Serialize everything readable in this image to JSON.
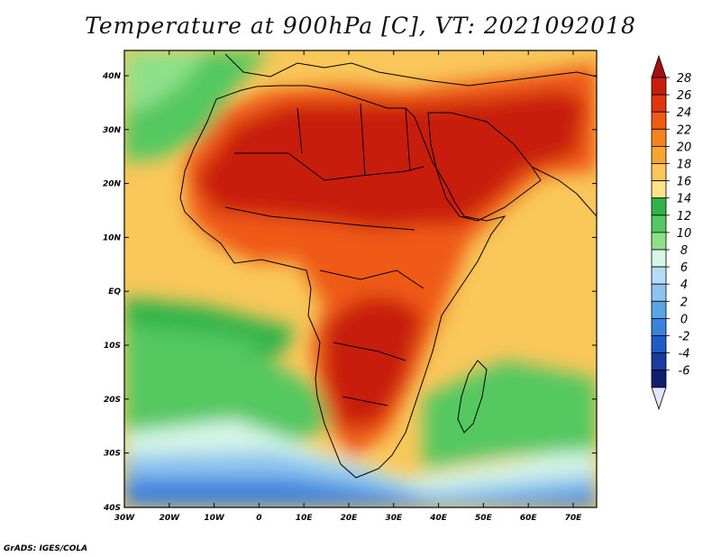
{
  "title": "Temperature at 900hPa [C], VT: 2021092018",
  "credit": "GrADS: IGES/COLA",
  "axes": {
    "lon_labels": [
      "30W",
      "20W",
      "10W",
      "0",
      "10E",
      "20E",
      "30E",
      "40E",
      "50E",
      "60E",
      "70E"
    ],
    "lat_labels": [
      "40N",
      "30N",
      "20N",
      "10N",
      "EQ",
      "10S",
      "20S",
      "30S",
      "40S"
    ]
  },
  "colorbar": {
    "labels": [
      "28",
      "26",
      "24",
      "22",
      "20",
      "18",
      "16",
      "14",
      "12",
      "10",
      "8",
      "6",
      "4",
      "2",
      "0",
      "-2",
      "-4",
      "-6"
    ],
    "colors": [
      "#a50f0f",
      "#c81e0f",
      "#e0360f",
      "#ef5a14",
      "#f5821e",
      "#f7a531",
      "#f9c75a",
      "#fbe389",
      "#2fb44a",
      "#55c860",
      "#8fe08a",
      "#d6f6e6",
      "#b6dcf6",
      "#8cc4f0",
      "#5aa4e6",
      "#3c82dc",
      "#1f5cc8",
      "#1a3ca0",
      "#0f1e6e",
      "#e4e4ff"
    ]
  }
}
